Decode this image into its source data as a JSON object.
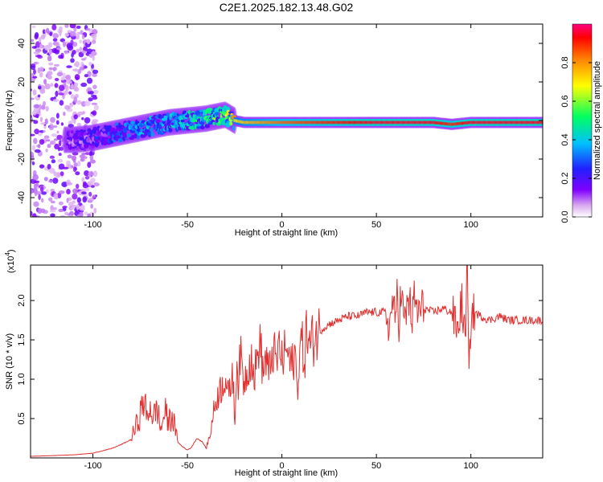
{
  "title": "C2E1.2025.182.13.48.G02",
  "chart_data": [
    {
      "type": "heatmap",
      "title": "C2E1.2025.182.13.48.G02",
      "xlabel": "Height of straight line (km)",
      "ylabel": "Frequency (Hz)",
      "xlim": [
        -133,
        138
      ],
      "ylim": [
        -50,
        50
      ],
      "x_ticks": [
        "-100",
        "-50",
        "0",
        "50",
        "100"
      ],
      "y_ticks": [
        "-40",
        "-20",
        "0",
        "20",
        "40"
      ],
      "x_tick_values": [
        -100,
        -50,
        0,
        50,
        100
      ],
      "y_tick_values": [
        -40,
        -20,
        0,
        20,
        40
      ],
      "colorbar": {
        "label": "Normalized spectral amplitude",
        "range": [
          0,
          1
        ],
        "ticks": [
          "0.0",
          "0.2",
          "0.4",
          "0.6",
          "0.8"
        ],
        "tick_values": [
          0.0,
          0.2,
          0.4,
          0.6,
          0.8
        ],
        "colors": [
          "#ffffff",
          "#d9a8f0",
          "#8000ff",
          "#2020ff",
          "#00c0ff",
          "#00ff60",
          "#ffff00",
          "#ff8000",
          "#ff0000",
          "#ff0080"
        ]
      },
      "ridge": {
        "x": [
          -110,
          -100,
          -90,
          -80,
          -70,
          -60,
          -50,
          -40,
          -30,
          -25,
          -20,
          -10,
          0,
          20,
          50,
          80,
          90,
          100,
          138
        ],
        "frequency": [
          -10,
          -9,
          -7,
          -5,
          -3,
          -1,
          0,
          1,
          3,
          0,
          -1,
          -1,
          -1,
          -1,
          -1,
          -1,
          -2,
          -1,
          -1
        ],
        "amplitude": [
          0.15,
          0.2,
          0.25,
          0.3,
          0.35,
          0.35,
          0.4,
          0.45,
          0.5,
          0.7,
          0.75,
          0.8,
          0.85,
          0.9,
          0.95,
          0.95,
          0.9,
          0.95,
          0.95
        ]
      }
    },
    {
      "type": "line",
      "xlabel": "Height of straight line (km)",
      "ylabel": "SNR (10 * v/v)",
      "y_multiplier": "(x10^4)",
      "multiplier_base": "(x10",
      "multiplier_exp": "4",
      "multiplier_close": ")",
      "xlim": [
        -133,
        138
      ],
      "ylim": [
        0,
        24500
      ],
      "x_ticks": [
        "-100",
        "-50",
        "0",
        "50",
        "100"
      ],
      "y_ticks": [
        "0.5",
        "1.0",
        "1.5",
        "2.0"
      ],
      "x_tick_values": [
        -100,
        -50,
        0,
        50,
        100
      ],
      "y_tick_values": [
        5000,
        10000,
        15000,
        20000
      ],
      "color": "#e03030",
      "series": [
        {
          "x": [
            -133,
            -120,
            -110,
            -100,
            -95,
            -90,
            -85,
            -80,
            -78,
            -75,
            -73,
            -71,
            -70,
            -68,
            -66,
            -64,
            -62,
            -60,
            -58,
            -56,
            -55,
            -53,
            -50,
            -48,
            -45,
            -42,
            -40,
            -38,
            -36,
            -34,
            -32,
            -30,
            -28,
            -26,
            -25,
            -24,
            -23,
            -22,
            -20,
            -18,
            -16,
            -15,
            -13,
            -12,
            -10,
            -8,
            -7,
            -5,
            -3,
            -1,
            0,
            2,
            5,
            7,
            8,
            10,
            12,
            13,
            15,
            17,
            20,
            22,
            25,
            30,
            35,
            40,
            45,
            50,
            55,
            57,
            59,
            60,
            61,
            62,
            63,
            65,
            67,
            69,
            70,
            72,
            75,
            80,
            85,
            90,
            93,
            95,
            97,
            98,
            99,
            100,
            102,
            105,
            110,
            115,
            120,
            125,
            130,
            138
          ],
          "y": [
            200,
            300,
            400,
            600,
            900,
            1200,
            1700,
            2300,
            3500,
            5500,
            7500,
            4500,
            7000,
            5000,
            6500,
            3500,
            6000,
            4500,
            5500,
            3000,
            2000,
            1500,
            1000,
            1300,
            2500,
            2000,
            1200,
            3000,
            6000,
            8000,
            9000,
            10500,
            7500,
            11500,
            3500,
            12500,
            9500,
            13000,
            9500,
            11500,
            13500,
            10000,
            12500,
            15500,
            11000,
            13000,
            10000,
            14000,
            12000,
            14500,
            12000,
            14000,
            11500,
            13500,
            8500,
            15000,
            12500,
            16000,
            14000,
            15500,
            16000,
            16500,
            17000,
            17500,
            18000,
            18000,
            18500,
            18500,
            18500,
            16500,
            21000,
            15000,
            22500,
            17000,
            21000,
            17000,
            20500,
            17500,
            20000,
            18500,
            19000,
            18500,
            19000,
            18500,
            16000,
            20000,
            15000,
            24500,
            10000,
            18000,
            18500,
            18000,
            17500,
            18000,
            17500,
            17500,
            17500,
            17500
          ]
        }
      ]
    }
  ]
}
